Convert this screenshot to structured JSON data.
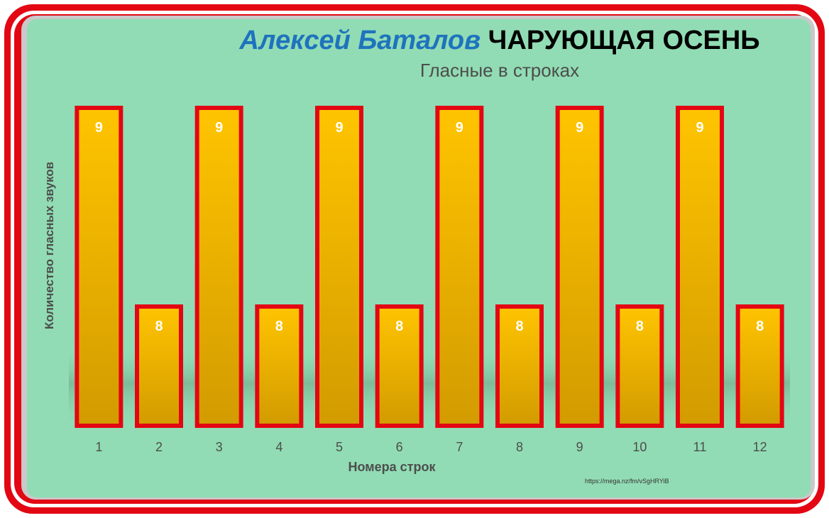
{
  "header": {
    "author": "Алексей Баталов",
    "work": "ЧАРУЮЩАЯ ОСЕНЬ"
  },
  "footer": {
    "url": "https://mega.nz/fm/vSgHRYiB"
  },
  "colors": {
    "background": "#91dcb4",
    "border": "#e30613",
    "bar_top": "#ffc400",
    "bar_bottom": "#d29b00",
    "bar_label": "#ffffff"
  },
  "chart_data": {
    "type": "bar",
    "title": "Гласные в строках",
    "xlabel": "Номера строк",
    "ylabel": "Количество гласных звуков",
    "categories": [
      "1",
      "2",
      "3",
      "4",
      "5",
      "6",
      "7",
      "8",
      "9",
      "10",
      "11",
      "12"
    ],
    "values": [
      9,
      8,
      9,
      8,
      9,
      8,
      9,
      8,
      9,
      8,
      9,
      8
    ],
    "ylim": [
      7.4,
      9
    ],
    "grid": false,
    "legend": "none",
    "data_labels": true
  }
}
